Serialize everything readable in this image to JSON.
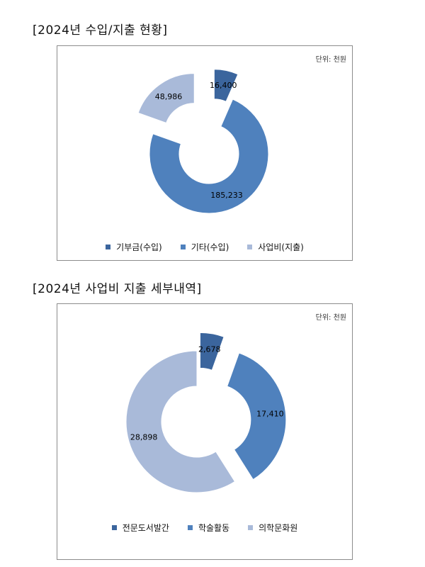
{
  "sections": [
    {
      "title": "[2024년 수입/지출 현황]"
    },
    {
      "title": "[2024년 사업비 지출 세부내역]"
    }
  ],
  "chart_data": [
    {
      "type": "donut",
      "unit_label": "단위: 천원",
      "categories": [
        "기부금(수입)",
        "기타(수입)",
        "사업비(지출)"
      ],
      "values": [
        16400,
        185233,
        48986
      ],
      "labels": [
        "16,400",
        "185,233",
        "48,986"
      ],
      "colors": [
        "#3b659d",
        "#4f81bd",
        "#a9bad9"
      ],
      "exploded": [
        true,
        false,
        true
      ],
      "legend_position": "bottom"
    },
    {
      "type": "donut",
      "unit_label": "단위: 천원",
      "categories": [
        "전문도서발간",
        "학술활동",
        "의학문화원"
      ],
      "values": [
        2678,
        17410,
        28898
      ],
      "labels": [
        "2,678",
        "17,410",
        "28,898"
      ],
      "colors": [
        "#3b659d",
        "#4f81bd",
        "#a9bad9"
      ],
      "exploded": [
        true,
        true,
        false
      ],
      "legend_position": "bottom"
    }
  ]
}
